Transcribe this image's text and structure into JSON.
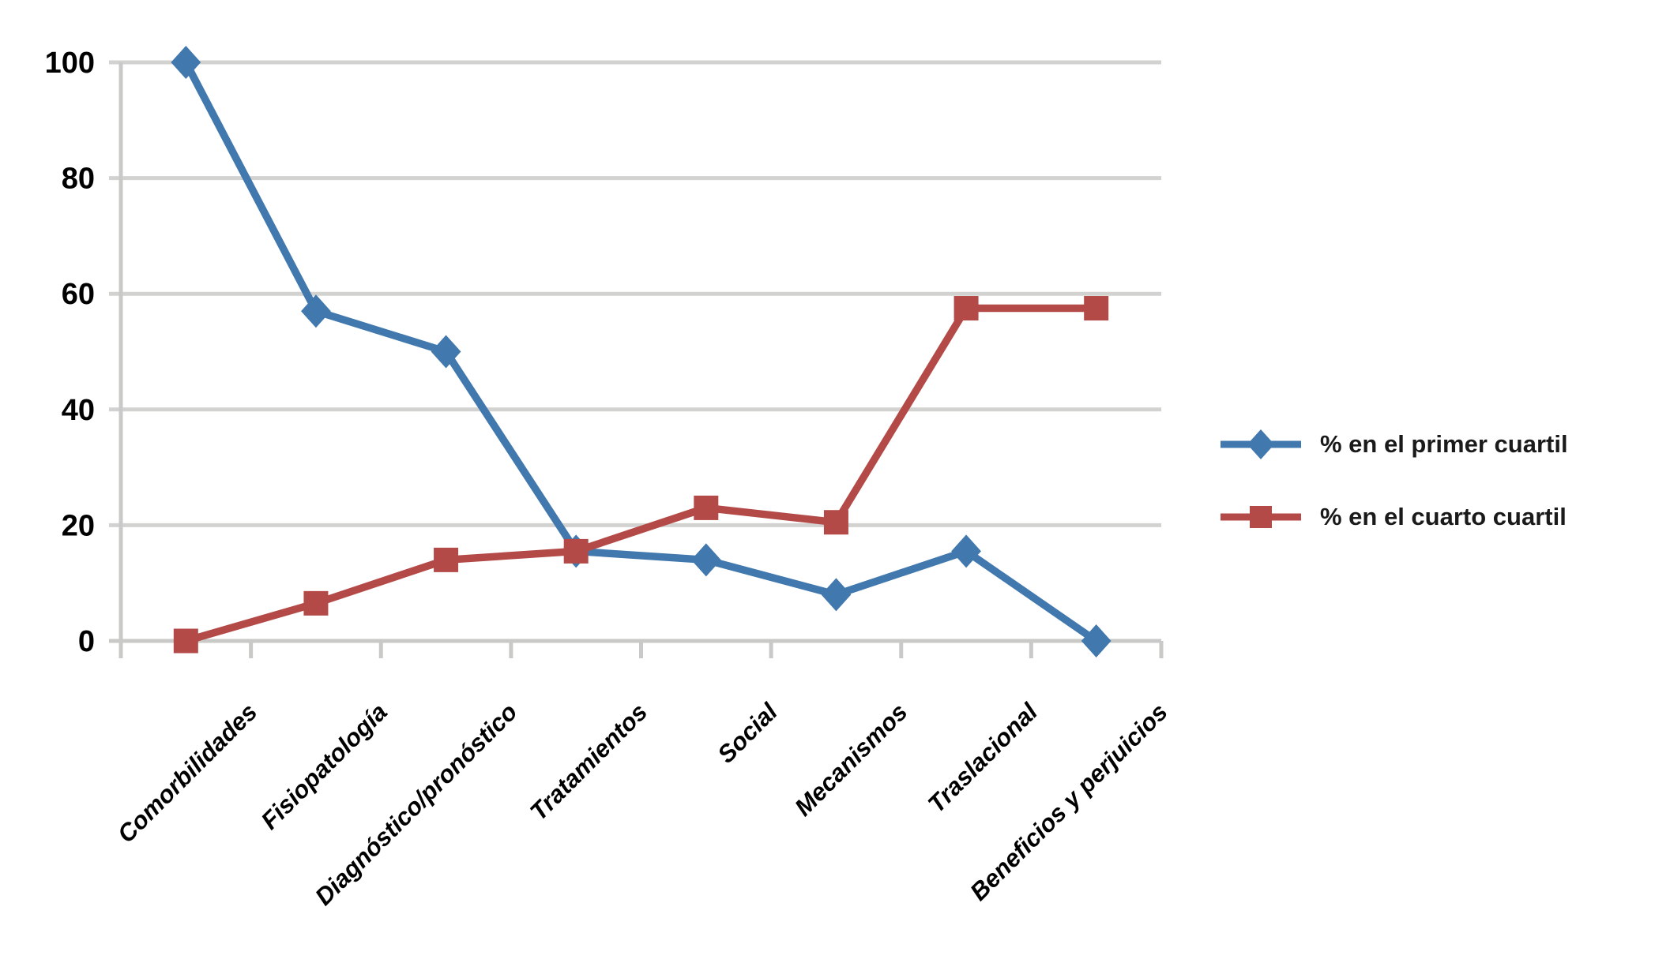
{
  "chart_data": {
    "type": "line",
    "categories": [
      "Comorbilidades",
      "Fisiopatología",
      "Diagnóstico/pronóstico",
      "Tratamientos",
      "Social",
      "Mecanismos",
      "Traslacional",
      "Beneficios y perjuicios"
    ],
    "series": [
      {
        "name": "% en el primer cuartil",
        "marker": "diamond",
        "color": "#4178AD",
        "values": [
          100,
          57,
          50,
          15.5,
          14,
          8,
          15.5,
          0
        ]
      },
      {
        "name": "% en el cuarto cuartil",
        "marker": "square",
        "color": "#B44A48",
        "values": [
          0,
          6.5,
          14,
          15.5,
          23,
          20.5,
          57.5,
          57.5
        ]
      }
    ],
    "ylim": [
      0,
      100
    ],
    "yticks": [
      0,
      20,
      40,
      60,
      80,
      100
    ],
    "grid": true,
    "legend_position": "right",
    "colors": {
      "grid": "#D2D2D0",
      "axis": "#C9C9C7",
      "tick_label": "#000000",
      "legend_text": "#1a1a1a",
      "background": "#ffffff"
    }
  }
}
